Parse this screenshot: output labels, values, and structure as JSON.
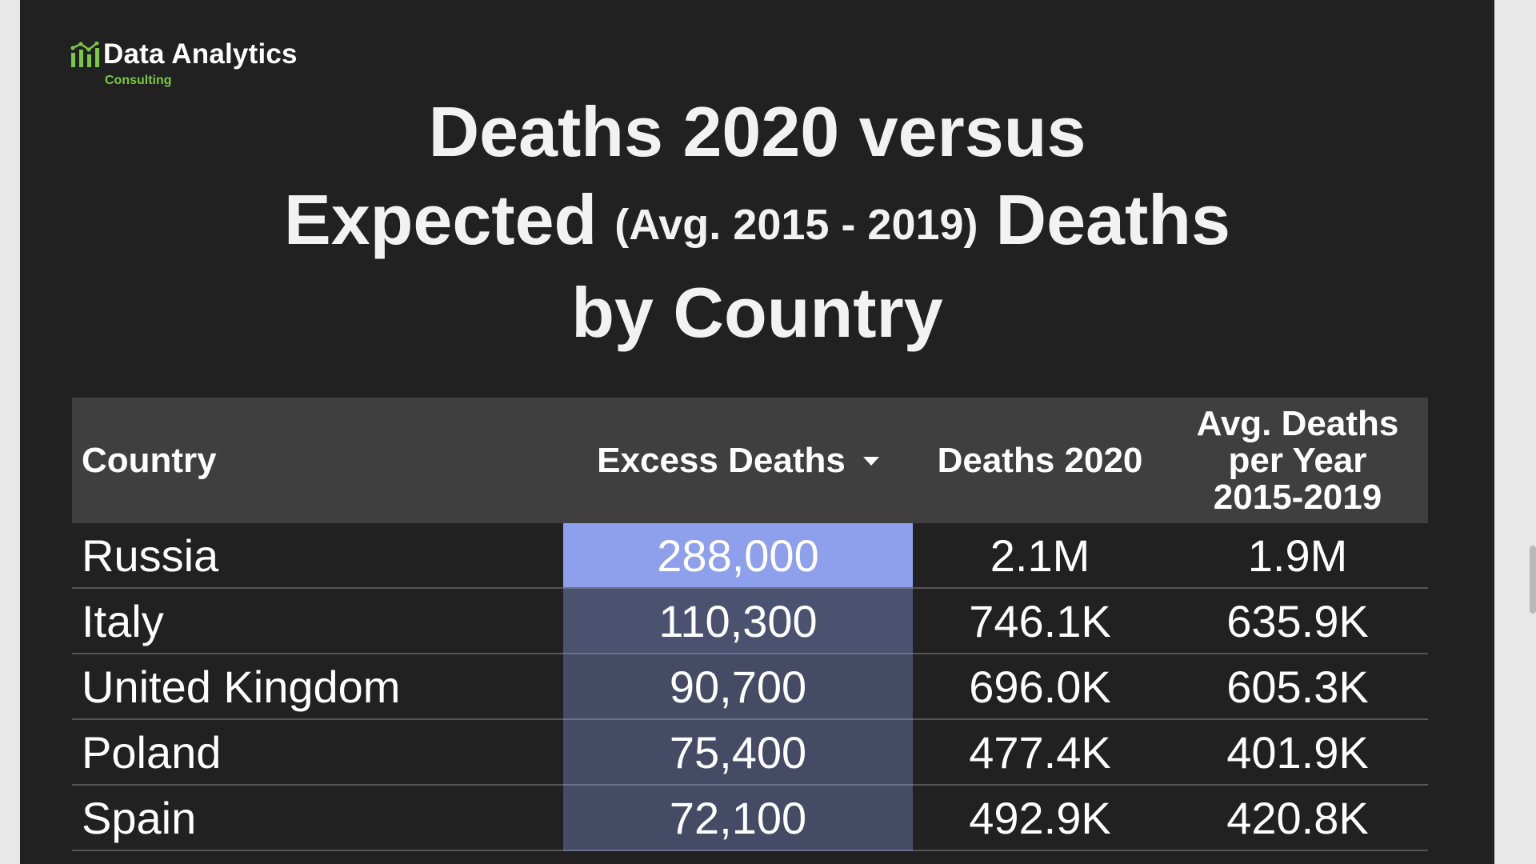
{
  "brand": {
    "name": "Data Analytics",
    "subtitle": "Consulting",
    "icon": "bar-chart-icon",
    "accent_color": "#7ac943"
  },
  "title": {
    "line1": "Deaths 2020 versus",
    "line2_start": "Expected",
    "line2_note": "(Avg. 2015 - 2019)",
    "line2_end": "Deaths",
    "line3": "by Country"
  },
  "table": {
    "headers": {
      "country": "Country",
      "excess": "Excess Deaths",
      "deaths_2020": "Deaths 2020",
      "avg_line1": "Avg. Deaths",
      "avg_line2": "per Year",
      "avg_line3": "2015-2019"
    },
    "sort_icon": "sort-descending-icon",
    "rows": [
      {
        "country": "Russia",
        "excess": "288,000",
        "deaths_2020": "2.1M",
        "avg": "1.9M"
      },
      {
        "country": "Italy",
        "excess": "110,300",
        "deaths_2020": "746.1K",
        "avg": "635.9K"
      },
      {
        "country": "United Kingdom",
        "excess": "90,700",
        "deaths_2020": "696.0K",
        "avg": "605.3K"
      },
      {
        "country": "Poland",
        "excess": "75,400",
        "deaths_2020": "477.4K",
        "avg": "401.9K"
      },
      {
        "country": "Spain",
        "excess": "72,100",
        "deaths_2020": "492.9K",
        "avg": "420.8K"
      }
    ],
    "highlight_color": "#8ea0ec",
    "cell_color": "#4a5270"
  }
}
